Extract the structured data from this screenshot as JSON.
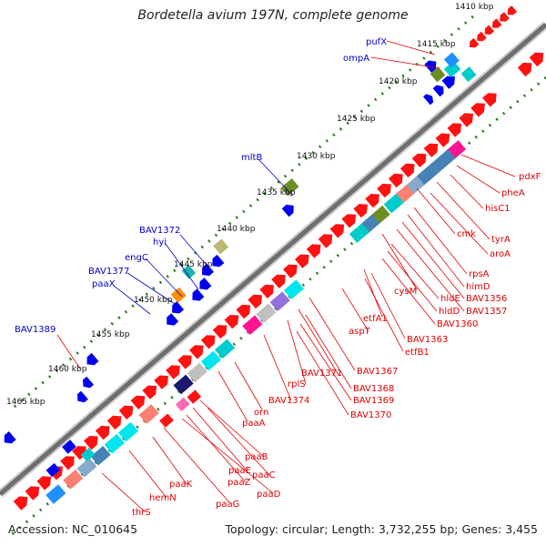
{
  "title": "Bordetella avium 197N, complete genome",
  "footer": {
    "accession_label": "Accession:",
    "accession": "NC_010645",
    "topology_label": "Topology:",
    "topology": "circular",
    "length_label": "Length:",
    "length": "3,732,255 bp",
    "genes_label": "Genes:",
    "genes": "3,455"
  },
  "colors": {
    "forward_label": "#0000cc",
    "reverse_label": "#dd0000",
    "backbone": "#777777",
    "tick": "#2b7a1f"
  },
  "ruler_ticks": [
    "1410 kbp",
    "1415 kbp",
    "1420 kbp",
    "1425 kbp",
    "1430 kbp",
    "1435 kbp",
    "1440 kbp",
    "1445 kbp",
    "1450 kbp",
    "1455 kbp",
    "1460 kbp",
    "1465 kbp"
  ],
  "forward_gene_labels": [
    "pufX",
    "ompA",
    "mltB",
    "BAV1372",
    "hyi",
    "engC",
    "BAV1377",
    "paaX",
    "BAV1389"
  ],
  "reverse_gene_labels": [
    "pdxF",
    "pheA",
    "hisC1",
    "cmk",
    "tyrA",
    "aroA",
    "rpsA",
    "himD",
    "BAV1356",
    "BAV1357",
    "cysM",
    "hldE",
    "hldD",
    "BAV1360",
    "etfA1",
    "BAV1363",
    "etfB1",
    "aspT",
    "BAV1367",
    "BAV1371",
    "BAV1368",
    "rplS",
    "BAV1369",
    "BAV1374",
    "BAV1370",
    "orn",
    "paaA",
    "paaB",
    "paaE",
    "paaC",
    "paaZ",
    "paaD",
    "paaK",
    "paaG",
    "hemN",
    "thrS"
  ]
}
